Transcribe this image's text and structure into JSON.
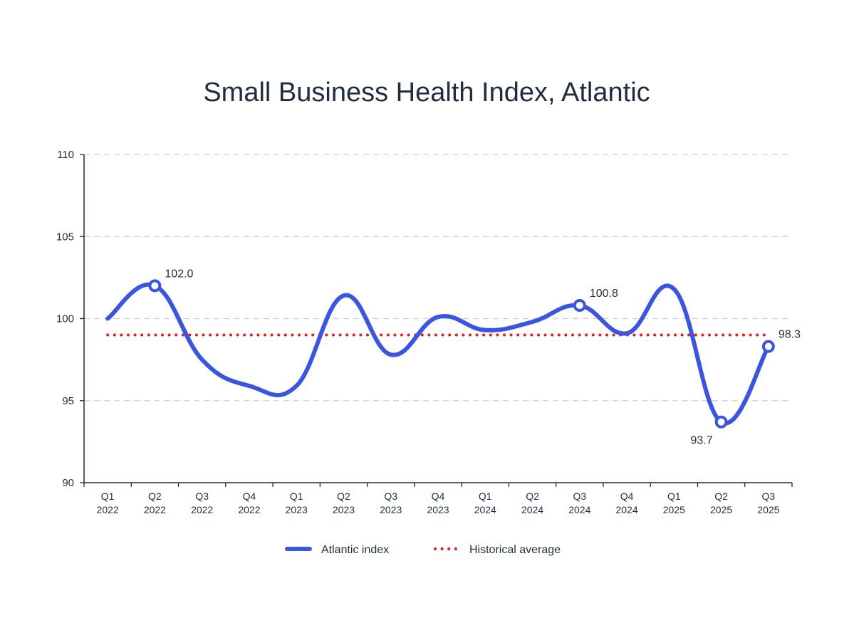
{
  "chart_data": {
    "type": "line",
    "title": "Small Business Health Index, Atlantic",
    "xlabel": "",
    "ylabel": "",
    "ylim": [
      90,
      110
    ],
    "yticks": [
      90,
      95,
      100,
      105,
      110
    ],
    "grid": "horizontal dashed",
    "legend_position": "bottom",
    "categories": [
      [
        "Q1",
        "2022"
      ],
      [
        "Q2",
        "2022"
      ],
      [
        "Q3",
        "2022"
      ],
      [
        "Q4",
        "2022"
      ],
      [
        "Q1",
        "2023"
      ],
      [
        "Q2",
        "2023"
      ],
      [
        "Q3",
        "2023"
      ],
      [
        "Q4",
        "2023"
      ],
      [
        "Q1",
        "2024"
      ],
      [
        "Q2",
        "2024"
      ],
      [
        "Q3",
        "2024"
      ],
      [
        "Q4",
        "2024"
      ],
      [
        "Q1",
        "2025"
      ],
      [
        "Q2",
        "2025"
      ],
      [
        "Q3",
        "2025"
      ]
    ],
    "series": [
      {
        "name": "Atlantic index",
        "color": "#3a55e0",
        "style": "solid",
        "values": [
          100.0,
          102.0,
          97.5,
          95.9,
          95.9,
          101.4,
          97.8,
          100.1,
          99.3,
          99.8,
          100.8,
          99.1,
          101.8,
          93.7,
          98.3
        ]
      },
      {
        "name": "Historical average",
        "color": "#e02020",
        "style": "dotted",
        "values": [
          99.0,
          99.0,
          99.0,
          99.0,
          99.0,
          99.0,
          99.0,
          99.0,
          99.0,
          99.0,
          99.0,
          99.0,
          99.0,
          99.0,
          99.0
        ]
      }
    ],
    "annotations": [
      {
        "index": 1,
        "value": 102.0,
        "label": "102.0",
        "placement": "above-right"
      },
      {
        "index": 10,
        "value": 100.8,
        "label": "100.8",
        "placement": "above-right"
      },
      {
        "index": 13,
        "value": 93.7,
        "label": "93.7",
        "placement": "below-left"
      },
      {
        "index": 14,
        "value": 98.3,
        "label": "98.3",
        "placement": "above-right"
      }
    ]
  }
}
